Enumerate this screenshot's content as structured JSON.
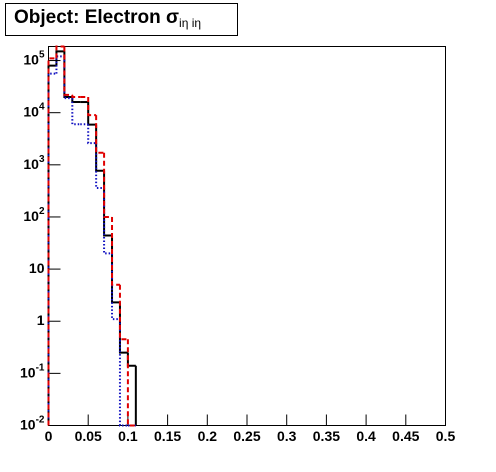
{
  "chart_data": {
    "type": "histogram",
    "title": "Object: Electron σ",
    "title_subscript": "iη iη",
    "bins": [
      0,
      0.01,
      0.02,
      0.03,
      0.04,
      0.05,
      0.06,
      0.07,
      0.08,
      0.09,
      0.1,
      0.11
    ],
    "series": [
      {
        "color": "#000000",
        "dash": "solid",
        "values": [
          80000,
          150000,
          20000,
          16000,
          16000,
          5900,
          770,
          44,
          2.3,
          0.25,
          0.14
        ]
      },
      {
        "color": "#1010c0",
        "dash": "dotted",
        "values": [
          56000,
          120000,
          19000,
          6000,
          6000,
          2600,
          360,
          20,
          1.1,
          0,
          0
        ]
      },
      {
        "color": "#e00000",
        "dash": "dashed",
        "values": [
          110000,
          186000,
          22000,
          20000,
          20000,
          9000,
          1700,
          100,
          5,
          0.45,
          0
        ]
      }
    ],
    "xlim": [
      0,
      0.5
    ],
    "xticks": [
      0,
      0.05,
      0.1,
      0.15,
      0.2,
      0.25,
      0.3,
      0.35,
      0.4,
      0.45,
      0.5
    ],
    "log_y": true,
    "ylim": [
      0.01,
      186000
    ],
    "yticks": [
      {
        "value": 0.01,
        "label": "10",
        "exponent": "-2"
      },
      {
        "value": 0.1,
        "label": "10",
        "exponent": "-1"
      },
      1,
      10,
      {
        "value": 100,
        "label": "10",
        "exponent": "2"
      },
      {
        "value": 1000,
        "label": "10",
        "exponent": "3"
      },
      {
        "value": 10000,
        "label": "10",
        "exponent": "4"
      },
      {
        "value": 100000,
        "label": "10",
        "exponent": "5"
      }
    ]
  }
}
